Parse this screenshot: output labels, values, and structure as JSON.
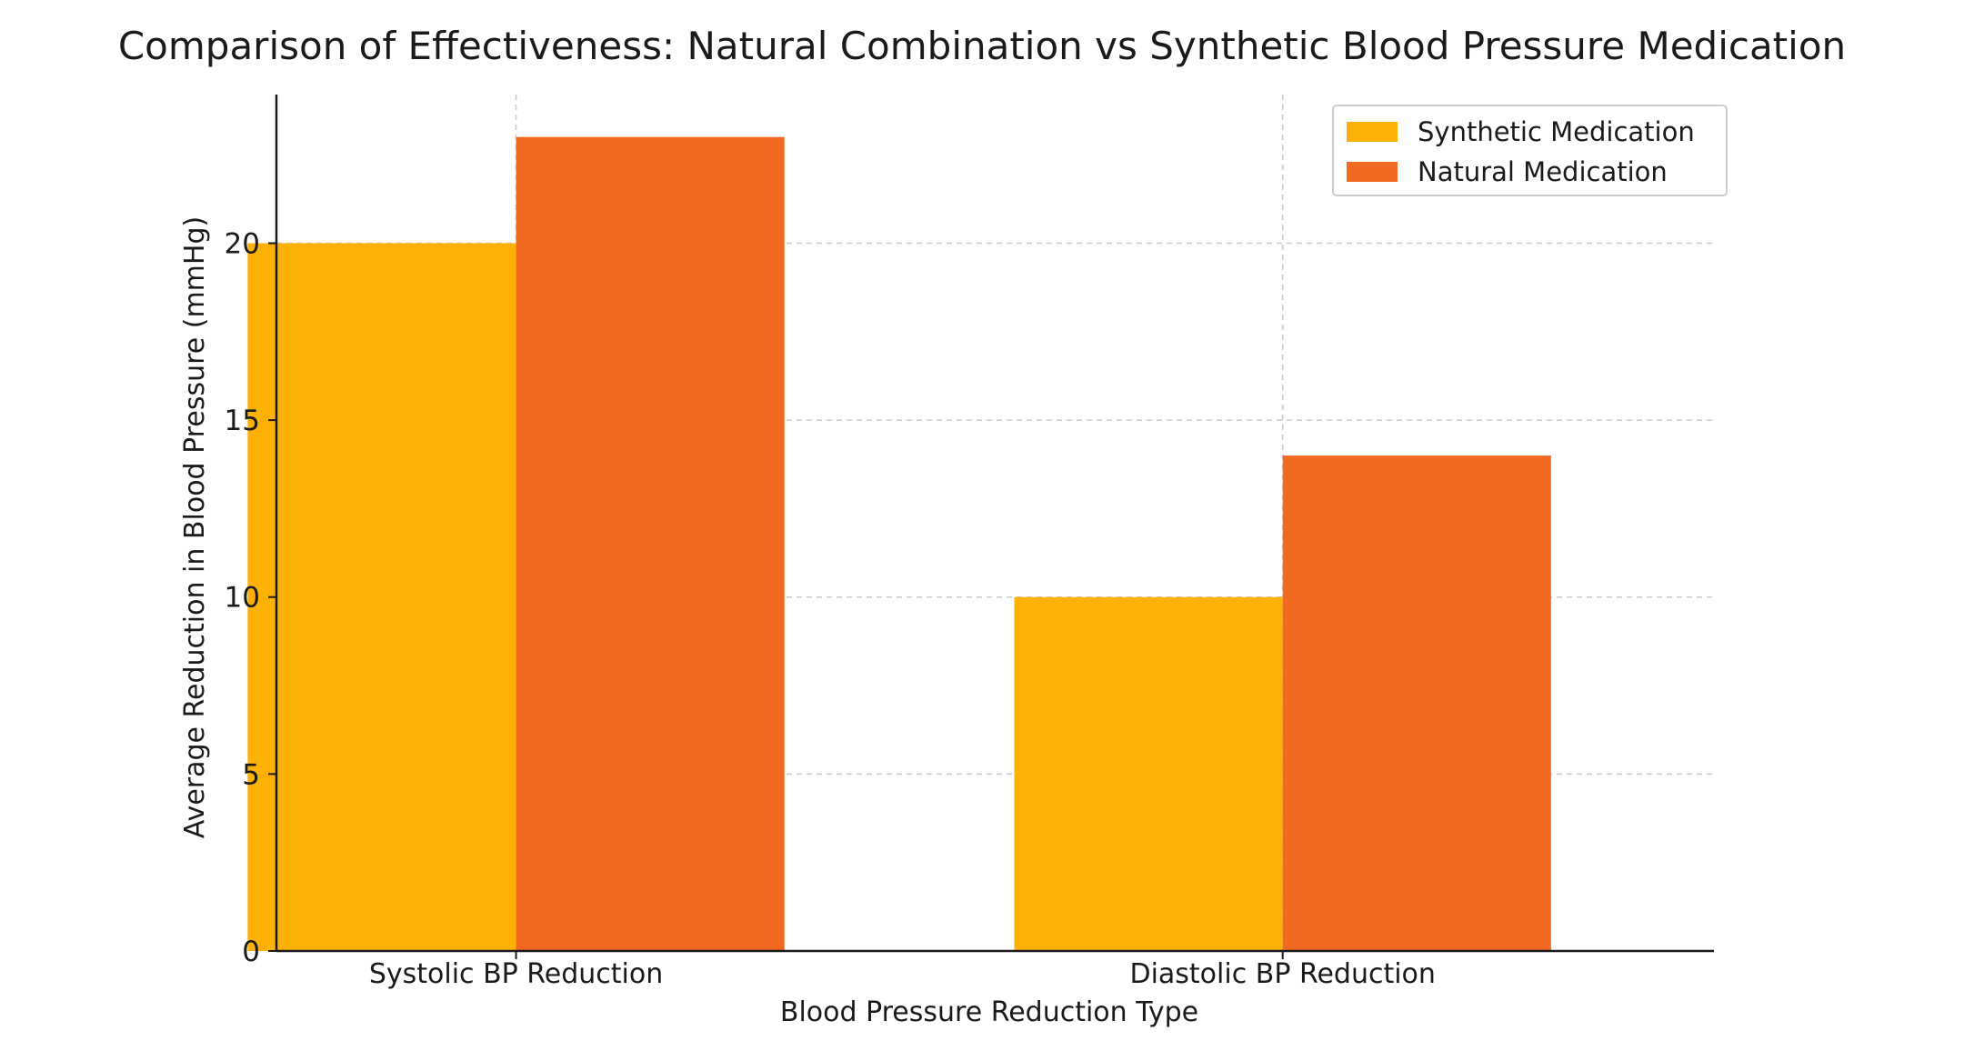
{
  "chart_data": {
    "type": "bar",
    "title": "Comparison of Effectiveness: Natural Combination vs Synthetic Blood Pressure Medication",
    "xlabel": "Blood Pressure Reduction Type",
    "ylabel": "Average Reduction in Blood Pressure (mmHg)",
    "categories": [
      "Systolic BP Reduction",
      "Diastolic BP Reduction"
    ],
    "series": [
      {
        "name": "Synthetic Medication",
        "values": [
          20,
          10
        ],
        "color": "#FDB005"
      },
      {
        "name": "Natural Medication",
        "values": [
          23,
          14
        ],
        "color": "#F26A22"
      }
    ],
    "ylim": [
      0,
      24.2
    ],
    "yticks": [
      0,
      5,
      10,
      15,
      20
    ],
    "grid": true,
    "legend_position": "top-right"
  }
}
